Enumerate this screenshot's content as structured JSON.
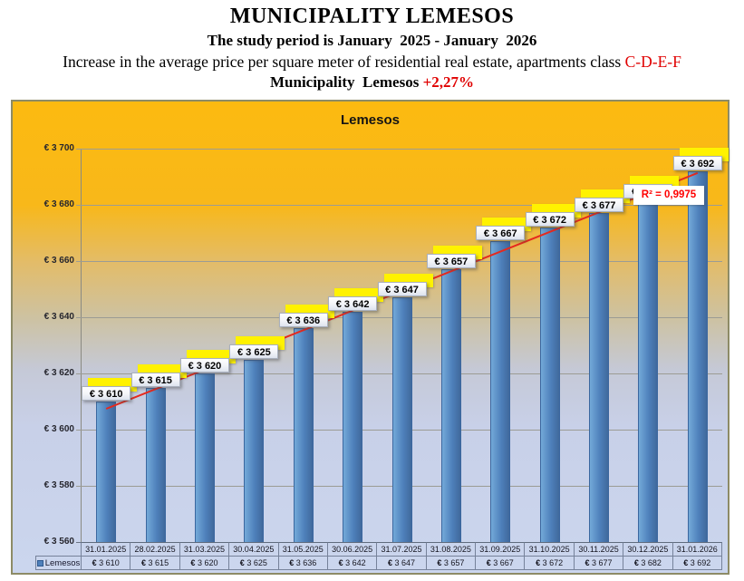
{
  "header": {
    "title": "MUNICIPALITY LEMESOS",
    "subtitle": "The study period is January  2025 - January  2026",
    "line3_prefix": "Increase in the average price per square meter of residential real estate, apartments class ",
    "line3_highlight": "C-D-E-F",
    "line4_prefix": "Municipality  Lemesos ",
    "line4_highlight": "+2,27%"
  },
  "chart_data": {
    "type": "bar",
    "title": "Lemesos",
    "categories": [
      "31.01.2025",
      "28.02.2025",
      "31.03.2025",
      "30.04.2025",
      "31.05.2025",
      "30.06.2025",
      "31.07.2025",
      "31.08.2025",
      "31.09.2025",
      "31.10.2025",
      "30.11.2025",
      "30.12.2025",
      "31.01.2026"
    ],
    "series": [
      {
        "name": "Lemesos",
        "values": [
          3610,
          3615,
          3620,
          3625,
          3636,
          3642,
          3647,
          3657,
          3667,
          3672,
          3677,
          3682,
          3692
        ]
      }
    ],
    "data_labels": [
      "€ 3 610",
      "€ 3 615",
      "€ 3 620",
      "€ 3 625",
      "€ 3 636",
      "€ 3 642",
      "€ 3 647",
      "€ 3 657",
      "€ 3 667",
      "€ 3 672",
      "€ 3 677",
      "€ 3 682",
      "€ 3 692"
    ],
    "ylim": [
      3560,
      3700
    ],
    "ytick_values": [
      3700,
      3680,
      3660,
      3640,
      3620,
      3600,
      3580,
      3560
    ],
    "ytick_labels": [
      "€ 3 700",
      "€ 3 680",
      "€ 3 660",
      "€ 3 640",
      "€ 3 620",
      "€ 3 600",
      "€ 3 580",
      "€ 3 560"
    ],
    "legend_label": "Lemesos",
    "legend_position": "bottom-table",
    "grid": true,
    "trendline": {
      "type": "linear",
      "annotation": "R² = 0,9975"
    },
    "colors": {
      "bar": "#4e80bb",
      "trendline": "#e6291d",
      "annotation_text": "#ff0000",
      "label_highlight": "#fff200",
      "background_top": "#fcba10",
      "background_bottom": "#cbd6ee",
      "highlight_text": "#e00000"
    }
  }
}
